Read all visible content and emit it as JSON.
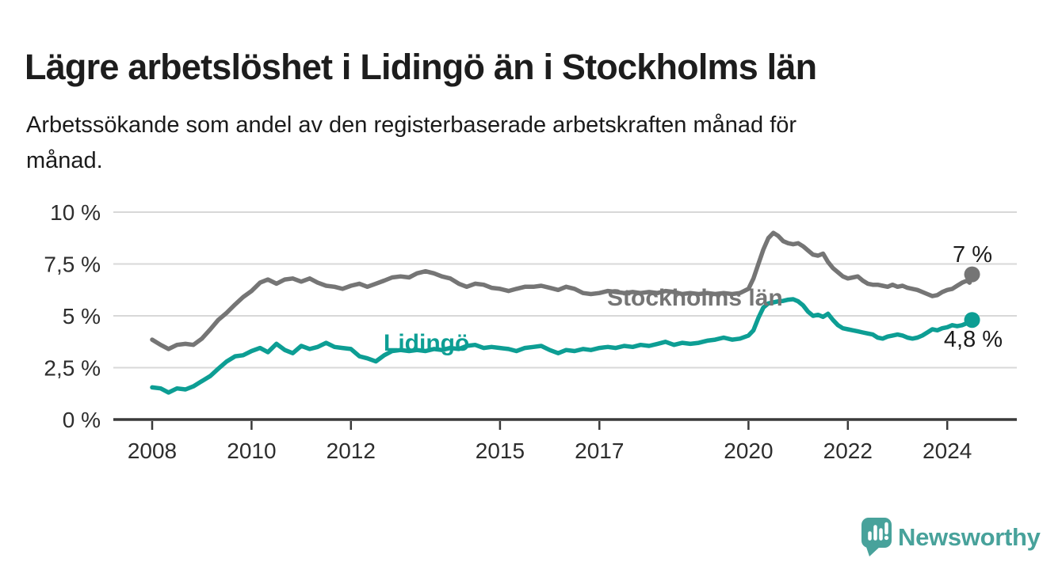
{
  "header": {
    "title": "Lägre arbetslöshet i Lidingö än i Stockholms län",
    "subtitle_lines": [
      "Arbetssökande som andel av den registerbaserade arbetskraften månad för",
      "månad."
    ]
  },
  "colors": {
    "grid": "#d8d8d8",
    "axis": "#3a3a3a",
    "tick_text": "#2d2d2d",
    "annotation_text": "#1b1b1b",
    "series_stockholm": "#757575",
    "series_lidingo": "#0d9e94",
    "brand_teal": "#48a29b"
  },
  "chart_data": {
    "type": "line",
    "title": "Lägre arbetslöshet i Lidingö än i Stockholms län",
    "subtitle": "Arbetssökande som andel av den registerbaserade arbetskraften månad för månad.",
    "xlabel": "",
    "ylabel": "",
    "unit": "%",
    "ylim": [
      0,
      10
    ],
    "xlim": [
      2007.2,
      2025.4
    ],
    "grid": "horizontal",
    "legend_position": "inline-labels",
    "y_ticks": [
      {
        "value": 0,
        "label": "0 %"
      },
      {
        "value": 2.5,
        "label": "2,5 %"
      },
      {
        "value": 5,
        "label": "5 %"
      },
      {
        "value": 7.5,
        "label": "7,5 %"
      },
      {
        "value": 10,
        "label": "10 %"
      }
    ],
    "x_ticks": [
      {
        "value": 2008,
        "label": "2008"
      },
      {
        "value": 2010,
        "label": "2010"
      },
      {
        "value": 2012,
        "label": "2012"
      },
      {
        "value": 2015,
        "label": "2015"
      },
      {
        "value": 2017,
        "label": "2017"
      },
      {
        "value": 2020,
        "label": "2020"
      },
      {
        "value": 2022,
        "label": "2022"
      },
      {
        "value": 2024,
        "label": "2024"
      }
    ],
    "series": [
      {
        "name": "Stockholms län",
        "color": "#757575",
        "end_label": "7 %",
        "latest_value_pct": 7.0,
        "points": [
          [
            2008.0,
            3.85
          ],
          [
            2008.17,
            3.6
          ],
          [
            2008.33,
            3.4
          ],
          [
            2008.5,
            3.6
          ],
          [
            2008.67,
            3.65
          ],
          [
            2008.83,
            3.6
          ],
          [
            2009.0,
            3.9
          ],
          [
            2009.17,
            4.35
          ],
          [
            2009.33,
            4.8
          ],
          [
            2009.5,
            5.15
          ],
          [
            2009.67,
            5.55
          ],
          [
            2009.83,
            5.9
          ],
          [
            2010.0,
            6.2
          ],
          [
            2010.17,
            6.6
          ],
          [
            2010.33,
            6.75
          ],
          [
            2010.5,
            6.55
          ],
          [
            2010.67,
            6.75
          ],
          [
            2010.83,
            6.8
          ],
          [
            2011.0,
            6.65
          ],
          [
            2011.17,
            6.8
          ],
          [
            2011.33,
            6.6
          ],
          [
            2011.5,
            6.45
          ],
          [
            2011.67,
            6.4
          ],
          [
            2011.83,
            6.3
          ],
          [
            2012.0,
            6.45
          ],
          [
            2012.17,
            6.55
          ],
          [
            2012.33,
            6.4
          ],
          [
            2012.5,
            6.55
          ],
          [
            2012.67,
            6.7
          ],
          [
            2012.83,
            6.85
          ],
          [
            2013.0,
            6.9
          ],
          [
            2013.17,
            6.85
          ],
          [
            2013.33,
            7.05
          ],
          [
            2013.5,
            7.15
          ],
          [
            2013.67,
            7.05
          ],
          [
            2013.83,
            6.9
          ],
          [
            2014.0,
            6.8
          ],
          [
            2014.17,
            6.55
          ],
          [
            2014.33,
            6.4
          ],
          [
            2014.5,
            6.55
          ],
          [
            2014.67,
            6.5
          ],
          [
            2014.83,
            6.35
          ],
          [
            2015.0,
            6.3
          ],
          [
            2015.17,
            6.2
          ],
          [
            2015.33,
            6.3
          ],
          [
            2015.5,
            6.4
          ],
          [
            2015.67,
            6.4
          ],
          [
            2015.83,
            6.45
          ],
          [
            2016.0,
            6.35
          ],
          [
            2016.17,
            6.25
          ],
          [
            2016.33,
            6.4
          ],
          [
            2016.5,
            6.3
          ],
          [
            2016.67,
            6.1
          ],
          [
            2016.83,
            6.05
          ],
          [
            2017.0,
            6.1
          ],
          [
            2017.17,
            6.2
          ],
          [
            2017.33,
            6.15
          ],
          [
            2017.5,
            6.1
          ],
          [
            2017.67,
            6.15
          ],
          [
            2017.83,
            6.1
          ],
          [
            2018.0,
            6.15
          ],
          [
            2018.17,
            6.1
          ],
          [
            2018.33,
            6.2
          ],
          [
            2018.5,
            6.15
          ],
          [
            2018.67,
            6.05
          ],
          [
            2018.83,
            6.1
          ],
          [
            2019.0,
            6.05
          ],
          [
            2019.17,
            6.1
          ],
          [
            2019.33,
            6.05
          ],
          [
            2019.5,
            6.1
          ],
          [
            2019.67,
            6.05
          ],
          [
            2019.83,
            6.1
          ],
          [
            2020.0,
            6.3
          ],
          [
            2020.1,
            6.8
          ],
          [
            2020.2,
            7.5
          ],
          [
            2020.3,
            8.2
          ],
          [
            2020.4,
            8.75
          ],
          [
            2020.5,
            9.0
          ],
          [
            2020.6,
            8.85
          ],
          [
            2020.7,
            8.6
          ],
          [
            2020.8,
            8.5
          ],
          [
            2020.9,
            8.45
          ],
          [
            2021.0,
            8.5
          ],
          [
            2021.1,
            8.35
          ],
          [
            2021.2,
            8.15
          ],
          [
            2021.3,
            7.95
          ],
          [
            2021.4,
            7.9
          ],
          [
            2021.5,
            8.0
          ],
          [
            2021.6,
            7.6
          ],
          [
            2021.7,
            7.3
          ],
          [
            2021.8,
            7.1
          ],
          [
            2021.9,
            6.9
          ],
          [
            2022.0,
            6.8
          ],
          [
            2022.1,
            6.85
          ],
          [
            2022.2,
            6.9
          ],
          [
            2022.3,
            6.7
          ],
          [
            2022.4,
            6.55
          ],
          [
            2022.5,
            6.5
          ],
          [
            2022.6,
            6.5
          ],
          [
            2022.7,
            6.45
          ],
          [
            2022.8,
            6.4
          ],
          [
            2022.9,
            6.5
          ],
          [
            2023.0,
            6.4
          ],
          [
            2023.1,
            6.45
          ],
          [
            2023.2,
            6.35
          ],
          [
            2023.3,
            6.3
          ],
          [
            2023.4,
            6.25
          ],
          [
            2023.5,
            6.15
          ],
          [
            2023.6,
            6.05
          ],
          [
            2023.7,
            5.95
          ],
          [
            2023.8,
            6.0
          ],
          [
            2023.9,
            6.15
          ],
          [
            2024.0,
            6.25
          ],
          [
            2024.1,
            6.3
          ],
          [
            2024.2,
            6.45
          ],
          [
            2024.3,
            6.6
          ],
          [
            2024.4,
            6.7
          ],
          [
            2024.45,
            6.6
          ],
          [
            2024.5,
            7.0
          ]
        ]
      },
      {
        "name": "Lidingö",
        "color": "#0d9e94",
        "end_label": "4,8 %",
        "latest_value_pct": 4.8,
        "points": [
          [
            2008.0,
            1.55
          ],
          [
            2008.17,
            1.5
          ],
          [
            2008.33,
            1.3
          ],
          [
            2008.5,
            1.5
          ],
          [
            2008.67,
            1.45
          ],
          [
            2008.83,
            1.6
          ],
          [
            2009.0,
            1.85
          ],
          [
            2009.17,
            2.1
          ],
          [
            2009.33,
            2.45
          ],
          [
            2009.5,
            2.8
          ],
          [
            2009.67,
            3.05
          ],
          [
            2009.83,
            3.1
          ],
          [
            2010.0,
            3.3
          ],
          [
            2010.17,
            3.45
          ],
          [
            2010.33,
            3.25
          ],
          [
            2010.5,
            3.65
          ],
          [
            2010.67,
            3.35
          ],
          [
            2010.83,
            3.2
          ],
          [
            2011.0,
            3.55
          ],
          [
            2011.17,
            3.4
          ],
          [
            2011.33,
            3.5
          ],
          [
            2011.5,
            3.7
          ],
          [
            2011.67,
            3.5
          ],
          [
            2011.83,
            3.45
          ],
          [
            2012.0,
            3.4
          ],
          [
            2012.17,
            3.05
          ],
          [
            2012.33,
            2.95
          ],
          [
            2012.5,
            2.8
          ],
          [
            2012.67,
            3.1
          ],
          [
            2012.83,
            3.3
          ],
          [
            2013.0,
            3.35
          ],
          [
            2013.17,
            3.3
          ],
          [
            2013.33,
            3.35
          ],
          [
            2013.5,
            3.3
          ],
          [
            2013.67,
            3.4
          ],
          [
            2013.83,
            3.35
          ],
          [
            2014.0,
            3.45
          ],
          [
            2014.17,
            3.4
          ],
          [
            2014.33,
            3.55
          ],
          [
            2014.5,
            3.6
          ],
          [
            2014.67,
            3.45
          ],
          [
            2014.83,
            3.5
          ],
          [
            2015.0,
            3.45
          ],
          [
            2015.17,
            3.4
          ],
          [
            2015.33,
            3.3
          ],
          [
            2015.5,
            3.45
          ],
          [
            2015.67,
            3.5
          ],
          [
            2015.83,
            3.55
          ],
          [
            2016.0,
            3.35
          ],
          [
            2016.17,
            3.2
          ],
          [
            2016.33,
            3.35
          ],
          [
            2016.5,
            3.3
          ],
          [
            2016.67,
            3.4
          ],
          [
            2016.83,
            3.35
          ],
          [
            2017.0,
            3.45
          ],
          [
            2017.17,
            3.5
          ],
          [
            2017.33,
            3.45
          ],
          [
            2017.5,
            3.55
          ],
          [
            2017.67,
            3.5
          ],
          [
            2017.83,
            3.6
          ],
          [
            2018.0,
            3.55
          ],
          [
            2018.17,
            3.65
          ],
          [
            2018.33,
            3.75
          ],
          [
            2018.5,
            3.6
          ],
          [
            2018.67,
            3.7
          ],
          [
            2018.83,
            3.65
          ],
          [
            2019.0,
            3.7
          ],
          [
            2019.17,
            3.8
          ],
          [
            2019.33,
            3.85
          ],
          [
            2019.5,
            3.95
          ],
          [
            2019.67,
            3.85
          ],
          [
            2019.83,
            3.9
          ],
          [
            2020.0,
            4.05
          ],
          [
            2020.1,
            4.3
          ],
          [
            2020.2,
            4.9
          ],
          [
            2020.3,
            5.4
          ],
          [
            2020.4,
            5.6
          ],
          [
            2020.5,
            5.65
          ],
          [
            2020.6,
            5.7
          ],
          [
            2020.7,
            5.72
          ],
          [
            2020.8,
            5.78
          ],
          [
            2020.9,
            5.8
          ],
          [
            2021.0,
            5.7
          ],
          [
            2021.1,
            5.5
          ],
          [
            2021.2,
            5.2
          ],
          [
            2021.3,
            5.0
          ],
          [
            2021.4,
            5.05
          ],
          [
            2021.5,
            4.95
          ],
          [
            2021.6,
            5.1
          ],
          [
            2021.7,
            4.8
          ],
          [
            2021.8,
            4.55
          ],
          [
            2021.9,
            4.4
          ],
          [
            2022.0,
            4.35
          ],
          [
            2022.1,
            4.3
          ],
          [
            2022.2,
            4.25
          ],
          [
            2022.3,
            4.2
          ],
          [
            2022.4,
            4.15
          ],
          [
            2022.5,
            4.1
          ],
          [
            2022.6,
            3.95
          ],
          [
            2022.7,
            3.9
          ],
          [
            2022.8,
            4.0
          ],
          [
            2022.9,
            4.05
          ],
          [
            2023.0,
            4.1
          ],
          [
            2023.1,
            4.05
          ],
          [
            2023.2,
            3.95
          ],
          [
            2023.3,
            3.9
          ],
          [
            2023.4,
            3.95
          ],
          [
            2023.5,
            4.05
          ],
          [
            2023.6,
            4.2
          ],
          [
            2023.7,
            4.35
          ],
          [
            2023.8,
            4.3
          ],
          [
            2023.9,
            4.4
          ],
          [
            2024.0,
            4.45
          ],
          [
            2024.1,
            4.55
          ],
          [
            2024.2,
            4.5
          ],
          [
            2024.3,
            4.55
          ],
          [
            2024.4,
            4.65
          ],
          [
            2024.5,
            4.8
          ]
        ]
      }
    ]
  },
  "branding": {
    "name": "Newsworthy"
  }
}
